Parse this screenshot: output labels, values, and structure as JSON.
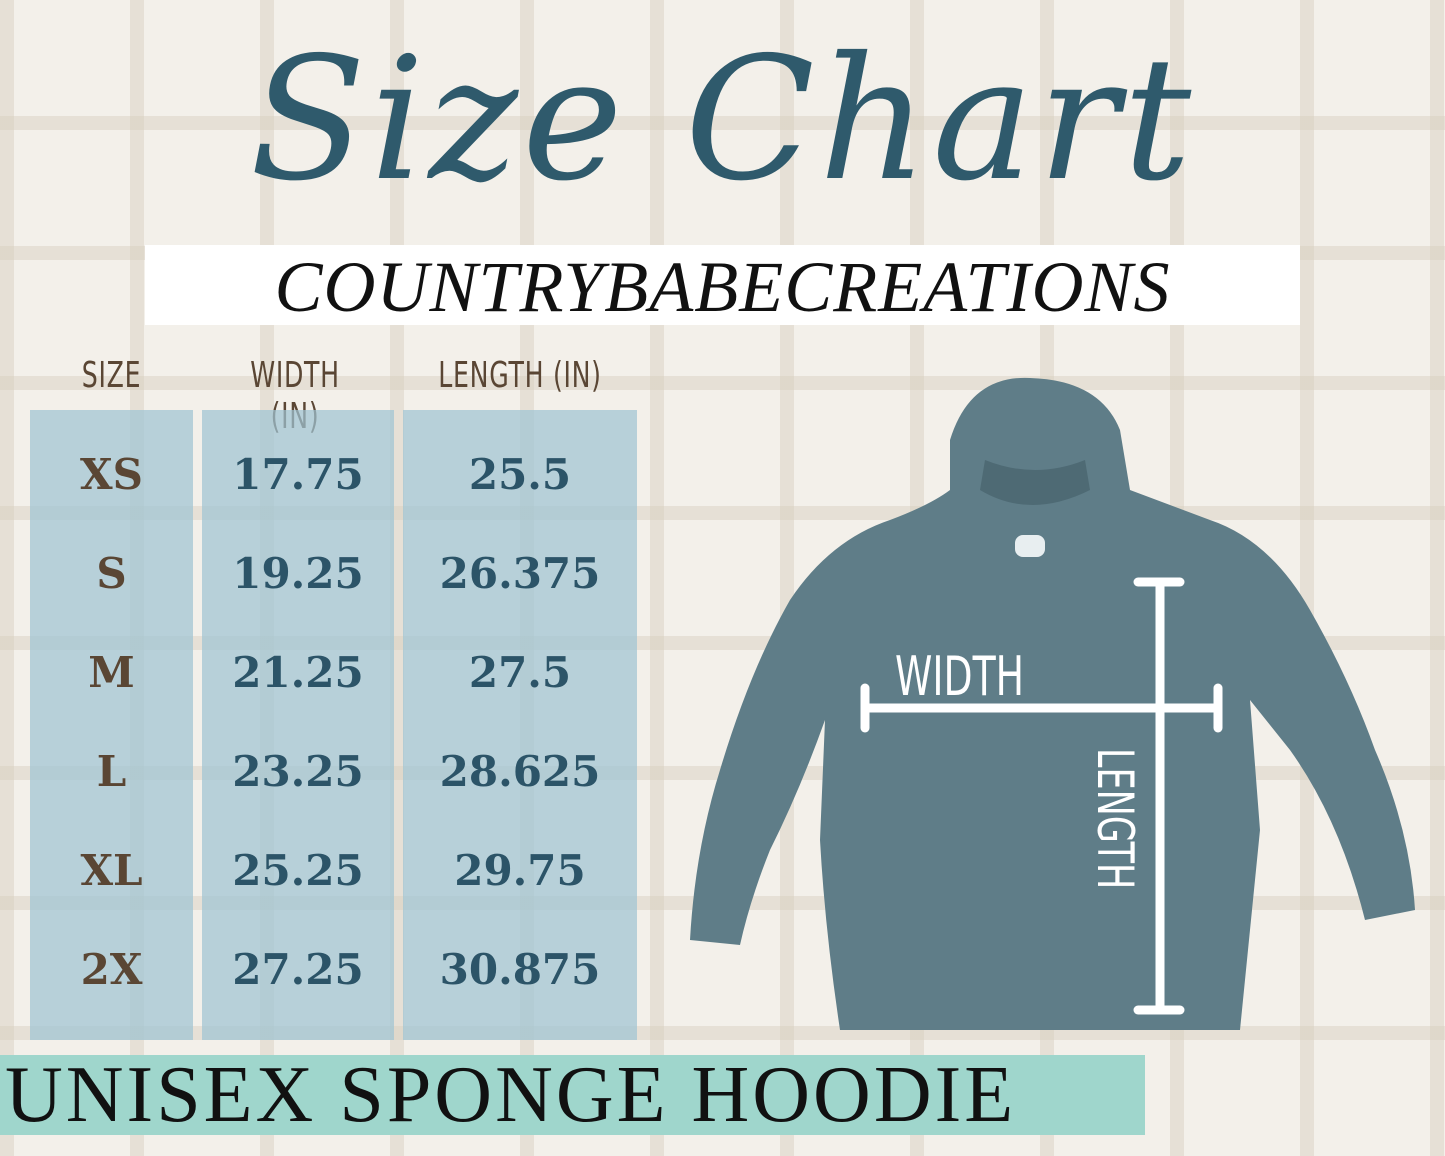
{
  "title": "Size Chart",
  "brand": "COUNTRYBABECREATIONS",
  "table": {
    "headers": [
      "SIZE",
      "WIDTH (IN)",
      "LENGTH (IN)"
    ],
    "rows": [
      {
        "size": "XS",
        "width": "17.75",
        "length": "25.5"
      },
      {
        "size": "S",
        "width": "19.25",
        "length": "26.375"
      },
      {
        "size": "M",
        "width": "21.25",
        "length": "27.5"
      },
      {
        "size": "L",
        "width": "23.25",
        "length": "28.625"
      },
      {
        "size": "XL",
        "width": "25.25",
        "length": "29.75"
      },
      {
        "size": "2X",
        "width": "27.25",
        "length": "30.875"
      }
    ]
  },
  "diagram": {
    "width_label": "WIDTH",
    "length_label": "LENGTH"
  },
  "product": "UNISEX SPONGE HOODIE",
  "colors": {
    "title": "#2f5a6c",
    "table_bg": "#a0c3d2",
    "size_text": "#5a4634",
    "value_text": "#2c5468",
    "footer_band": "#9fd6cc",
    "hoodie": "#5f7d88"
  }
}
